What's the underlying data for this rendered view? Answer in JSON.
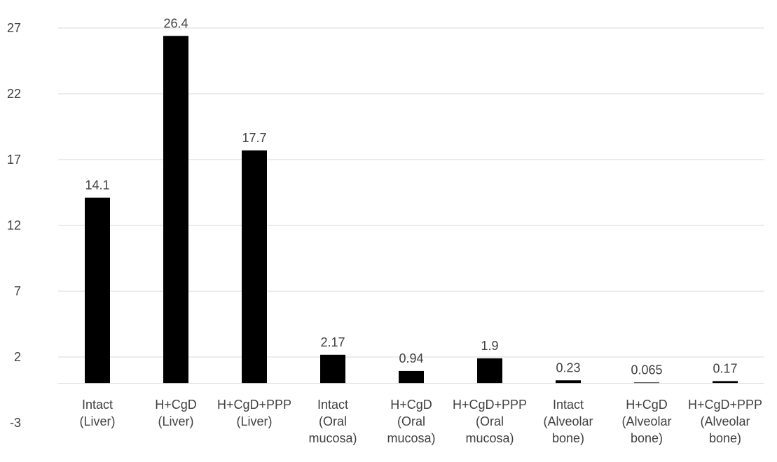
{
  "chart_data": {
    "type": "bar",
    "categories": [
      [
        "Intact",
        "(Liver)"
      ],
      [
        "H+CgD",
        "(Liver)"
      ],
      [
        "H+CgD+PPP",
        "(Liver)"
      ],
      [
        "Intact",
        "(Oral",
        "mucosa)"
      ],
      [
        "H+CgD",
        "(Oral",
        "mucosa)"
      ],
      [
        "H+CgD+PPP",
        "(Oral",
        "mucosa)"
      ],
      [
        "Intact",
        "(Alveolar",
        "bone)"
      ],
      [
        "H+CgD",
        "(Alveolar",
        "bone)"
      ],
      [
        "H+CgD+PPP",
        "(Alveolar",
        "bone)"
      ]
    ],
    "values": [
      14.1,
      26.4,
      17.7,
      2.17,
      0.94,
      1.9,
      0.23,
      0.065,
      0.17
    ],
    "data_labels": [
      "14.1",
      "26.4",
      "17.7",
      "2.17",
      "0.94",
      "1.9",
      "0.23",
      "0.065",
      "0.17"
    ],
    "yticks": [
      -3,
      2,
      7,
      12,
      17,
      22,
      27
    ],
    "ylim": [
      -3,
      27
    ],
    "grid": true,
    "bar_color": "#000000",
    "grid_color": "#d9d9d9",
    "text_color": "#404040"
  }
}
